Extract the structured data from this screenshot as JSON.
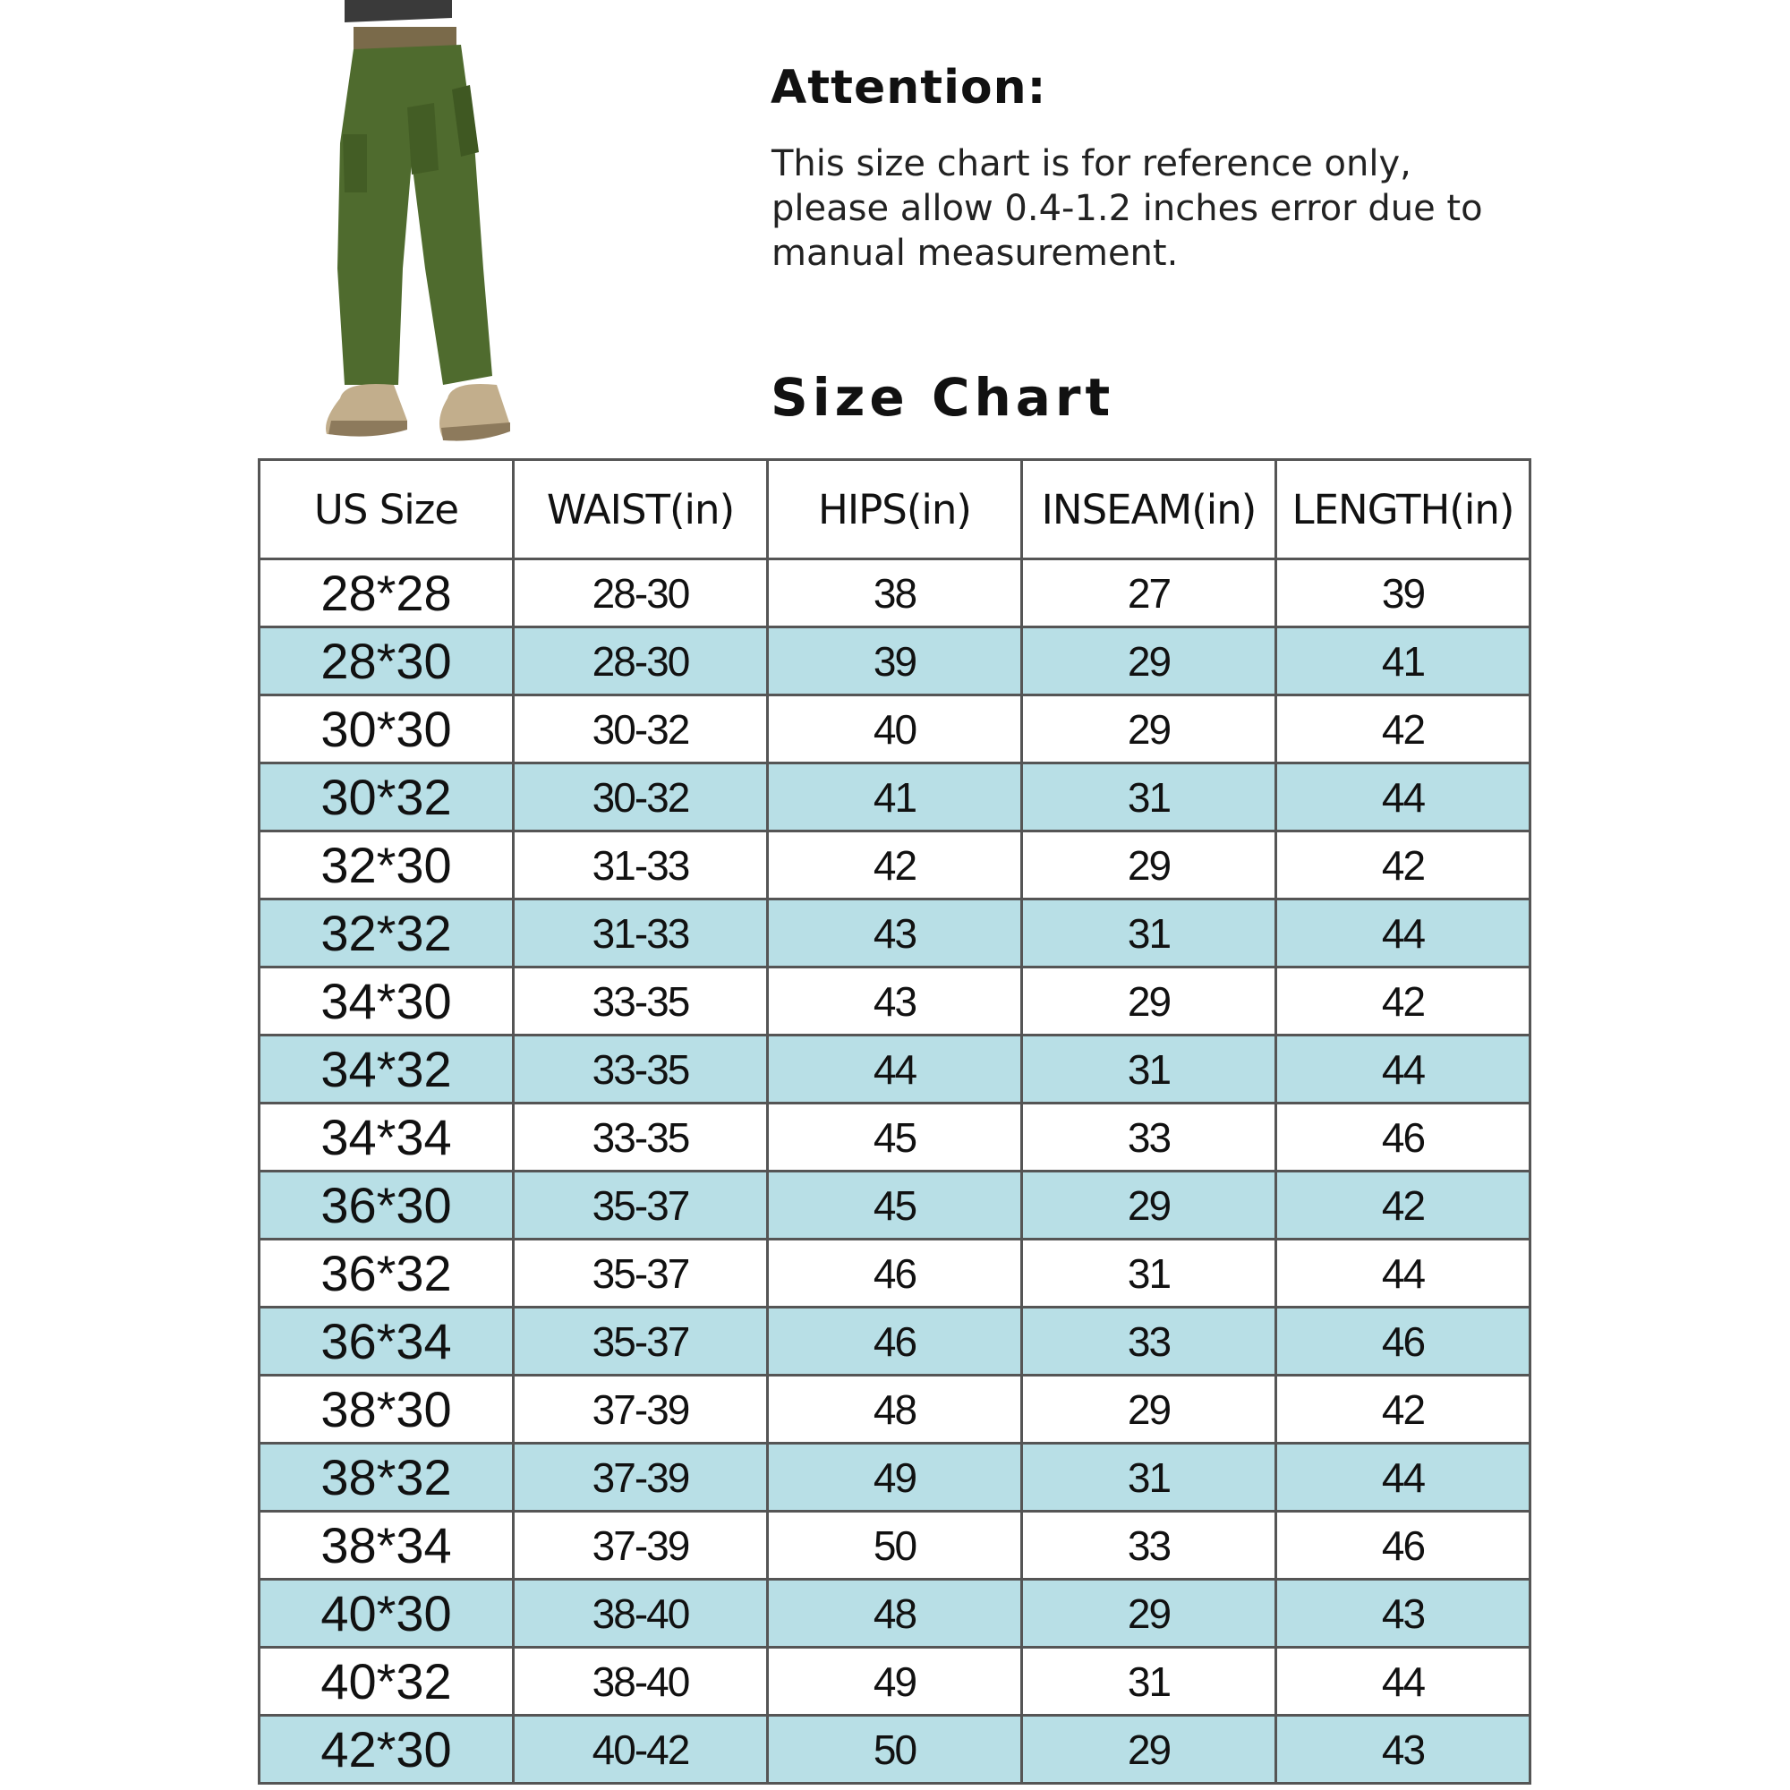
{
  "attention": {
    "title": "Attention:",
    "text": "This size chart is for reference only, please allow 0.4-1.2 inches error due to manual measurement."
  },
  "size_chart": {
    "title": "Size Chart",
    "headers": [
      "US Size",
      "WAIST(in)",
      "HIPS(in)",
      "INSEAM(in)",
      "LENGTH(in)"
    ],
    "rows": [
      [
        "28*28",
        "28-30",
        "38",
        "27",
        "39"
      ],
      [
        "28*30",
        "28-30",
        "39",
        "29",
        "41"
      ],
      [
        "30*30",
        "30-32",
        "40",
        "29",
        "42"
      ],
      [
        "30*32",
        "30-32",
        "41",
        "31",
        "44"
      ],
      [
        "32*30",
        "31-33",
        "42",
        "29",
        "42"
      ],
      [
        "32*32",
        "31-33",
        "43",
        "31",
        "44"
      ],
      [
        "34*30",
        "33-35",
        "43",
        "29",
        "42"
      ],
      [
        "34*32",
        "33-35",
        "44",
        "31",
        "44"
      ],
      [
        "34*34",
        "33-35",
        "45",
        "33",
        "46"
      ],
      [
        "36*30",
        "35-37",
        "45",
        "29",
        "42"
      ],
      [
        "36*32",
        "35-37",
        "46",
        "31",
        "44"
      ],
      [
        "36*34",
        "35-37",
        "46",
        "33",
        "46"
      ],
      [
        "38*30",
        "37-39",
        "48",
        "29",
        "42"
      ],
      [
        "38*32",
        "37-39",
        "49",
        "31",
        "44"
      ],
      [
        "38*34",
        "37-39",
        "50",
        "33",
        "46"
      ],
      [
        "40*30",
        "38-40",
        "48",
        "29",
        "43"
      ],
      [
        "40*32",
        "38-40",
        "49",
        "31",
        "44"
      ],
      [
        "42*30",
        "40-42",
        "50",
        "29",
        "43"
      ]
    ],
    "alt_row_color": "#b8dfe6"
  },
  "product_image": {
    "icon": "olive-cargo-pants-photo",
    "color": "#4f6b2e"
  }
}
